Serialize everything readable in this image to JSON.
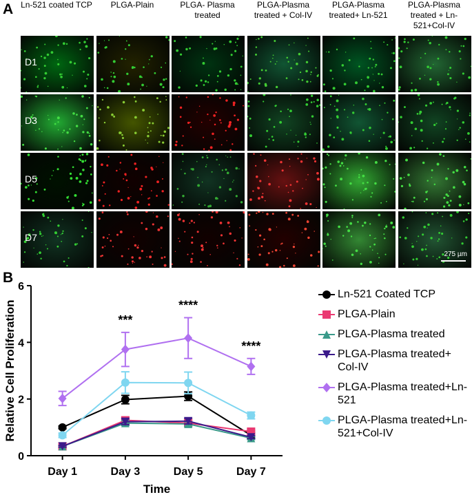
{
  "panel_a": {
    "label": "A",
    "columns": [
      "Ln-521 coated TCP",
      "PLGA-Plain",
      "PLGA- Plasma treated",
      "PLGA-Plasma treated + Col-IV",
      "PLGA-Plasma treated+ Ln-521",
      "PLGA-Plasma treated + Ln-521+Col-IV"
    ],
    "rows": [
      "D1",
      "D3",
      "D5",
      "D7"
    ],
    "scale_bar": "275 µm"
  },
  "chart_data": {
    "type": "line",
    "panel_label": "B",
    "x_label": "Time",
    "y_label": "Relative Cell Proliferation",
    "categories": [
      "Day 1",
      "Day 3",
      "Day 5",
      "Day 7"
    ],
    "ylim": [
      0,
      6
    ],
    "yticks": [
      0,
      2,
      4,
      6
    ],
    "series": [
      {
        "name": "Ln-521 Coated TCP",
        "color": "#000000",
        "marker": "circle",
        "values": [
          1.0,
          1.98,
          2.1,
          0.72
        ],
        "errors": [
          0.05,
          0.15,
          0.15,
          0.1
        ]
      },
      {
        "name": "PLGA-Plain",
        "color": "#ea3a72",
        "marker": "square",
        "values": [
          0.33,
          1.25,
          1.15,
          0.85
        ],
        "errors": [
          0.05,
          0.1,
          0.08,
          0.05
        ]
      },
      {
        "name": "PLGA-Plasma treated",
        "color": "#3a9a8a",
        "marker": "triangle-up",
        "values": [
          0.33,
          1.15,
          1.12,
          0.62
        ],
        "errors": [
          0.03,
          0.08,
          0.08,
          0.05
        ]
      },
      {
        "name": "PLGA-Plasma treated+ Col-IV",
        "color": "#3b1a8a",
        "marker": "triangle-down",
        "values": [
          0.33,
          1.2,
          1.22,
          0.65
        ],
        "errors": [
          0.03,
          0.1,
          0.1,
          0.05
        ]
      },
      {
        "name": "PLGA-Plasma treated+Ln-521",
        "color": "#b070f0",
        "marker": "diamond",
        "values": [
          2.02,
          3.75,
          4.15,
          3.15
        ],
        "errors": [
          0.25,
          0.6,
          0.72,
          0.28
        ]
      },
      {
        "name": "PLGA-Plasma treated+Ln-521+Col-IV",
        "color": "#7fd6f0",
        "marker": "circle",
        "values": [
          0.72,
          2.58,
          2.57,
          1.42
        ],
        "errors": [
          0.08,
          0.38,
          0.38,
          0.12
        ]
      }
    ],
    "annotations": [
      {
        "x": "Day 3",
        "text": "***"
      },
      {
        "x": "Day 5",
        "text": "****"
      },
      {
        "x": "Day 7",
        "text": "****"
      }
    ]
  }
}
